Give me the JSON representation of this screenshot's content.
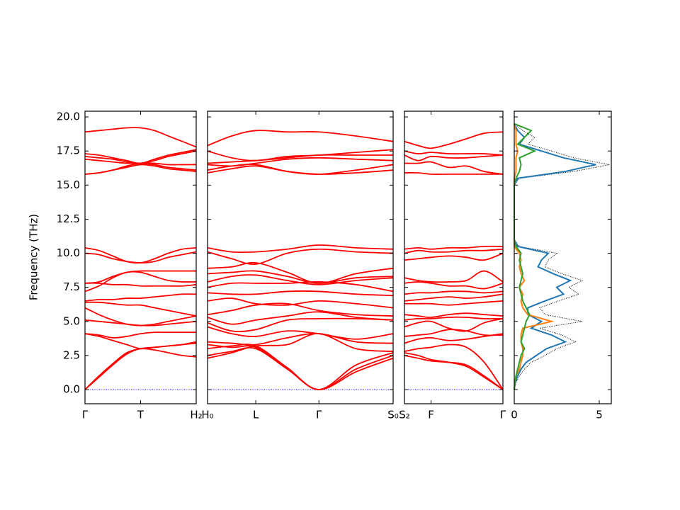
{
  "chart_data": {
    "type": "band_structure",
    "ylabel": "Frequency (THz)",
    "ylim": [
      -1.04,
      20.42
    ],
    "yticks": [
      {
        "value": 0,
        "label": "0.0"
      },
      2.5,
      {
        "value": 5,
        "label": "5.0"
      },
      7.5,
      {
        "value": 10,
        "label": "10.0"
      },
      12.5,
      {
        "value": 15,
        "label": "15.0"
      },
      17.5,
      {
        "value": 20,
        "label": "20.0"
      }
    ],
    "band_color": "red",
    "zero_line": {
      "value": 0,
      "color": "blue"
    },
    "panels": [
      {
        "xlim": [
          0,
          1
        ],
        "xticks": [
          {
            "value": 0,
            "label": "Γ"
          },
          {
            "value": 0.5,
            "label": "T"
          },
          {
            "value": 1,
            "label": "H₂"
          }
        ],
        "x": [
          0,
          0.125,
          0.25,
          0.375,
          0.5,
          0.625,
          0.75,
          0.875,
          1.0
        ],
        "bands": [
          [
            18.9,
            19.0,
            19.1,
            19.2,
            19.2,
            19.0,
            18.6,
            18.2,
            17.8
          ],
          [
            17.3,
            17.2,
            17.0,
            16.8,
            16.6,
            16.9,
            17.2,
            17.4,
            17.6
          ],
          [
            17.1,
            17.0,
            16.9,
            16.7,
            16.6,
            16.8,
            17.1,
            17.3,
            17.5
          ],
          [
            15.8,
            15.9,
            16.1,
            16.4,
            16.6,
            16.6,
            16.5,
            16.5,
            16.5
          ],
          [
            15.8,
            15.9,
            16.1,
            16.3,
            16.5,
            16.4,
            16.2,
            16.1,
            16.0
          ],
          [
            16.9,
            16.8,
            16.7,
            16.6,
            16.6,
            16.5,
            16.3,
            16.2,
            16.1
          ],
          [
            10.4,
            10.2,
            9.8,
            9.4,
            9.3,
            9.6,
            10.0,
            10.3,
            10.4
          ],
          [
            10.0,
            9.9,
            9.6,
            9.4,
            9.3,
            9.4,
            9.7,
            9.9,
            10.1
          ],
          [
            7.8,
            7.9,
            8.3,
            8.6,
            8.7,
            8.7,
            8.7,
            8.7,
            8.7
          ],
          [
            7.2,
            7.6,
            8.2,
            8.6,
            8.6,
            8.3,
            8.0,
            7.9,
            7.9
          ],
          [
            7.8,
            7.8,
            7.7,
            7.7,
            7.6,
            7.6,
            7.6,
            7.6,
            7.7
          ],
          [
            6.5,
            6.6,
            6.6,
            6.7,
            6.7,
            6.8,
            6.9,
            7.0,
            7.0
          ],
          [
            6.4,
            6.4,
            6.3,
            6.2,
            6.2,
            6.0,
            5.8,
            5.6,
            5.4
          ],
          [
            6.0,
            5.5,
            5.1,
            4.8,
            4.7,
            4.8,
            5.0,
            5.2,
            5.4
          ],
          [
            5.1,
            5.0,
            4.9,
            4.8,
            4.7,
            4.7,
            4.8,
            4.9,
            5.0
          ],
          [
            4.1,
            4.0,
            3.8,
            3.9,
            4.1,
            4.2,
            4.2,
            4.2,
            4.2
          ],
          [
            4.1,
            3.9,
            3.6,
            3.3,
            3.0,
            3.1,
            3.2,
            3.3,
            3.4
          ],
          [
            0,
            0.9,
            1.8,
            2.6,
            3.0,
            2.9,
            2.7,
            2.5,
            2.4
          ],
          [
            0,
            1.0,
            1.9,
            2.7,
            3.0,
            3.1,
            3.2,
            3.3,
            3.5
          ]
        ]
      },
      {
        "xlim": [
          0,
          1
        ],
        "xticks": [
          {
            "value": 0,
            "label": "H₀"
          },
          {
            "value": 0.26,
            "label": "L"
          },
          {
            "value": 0.6,
            "label": "Γ"
          },
          {
            "value": 1,
            "label": "S₀"
          }
        ],
        "x": [
          0,
          0.13,
          0.26,
          0.43,
          0.6,
          0.8,
          1.0
        ],
        "bands": [
          [
            17.9,
            18.6,
            19.0,
            18.9,
            18.9,
            18.6,
            18.2
          ],
          [
            17.5,
            17.0,
            16.8,
            17.1,
            17.2,
            17.4,
            17.6
          ],
          [
            16.6,
            16.7,
            16.8,
            17.0,
            17.2,
            17.2,
            17.2
          ],
          [
            16.5,
            16.4,
            16.6,
            16.9,
            17.0,
            16.9,
            16.8
          ],
          [
            16.1,
            16.4,
            16.5,
            16.0,
            15.8,
            16.1,
            16.5
          ],
          [
            15.9,
            16.2,
            16.4,
            16.0,
            15.8,
            15.9,
            16.1
          ],
          [
            10.4,
            10.1,
            10.1,
            10.3,
            10.6,
            10.4,
            10.3
          ],
          [
            10.1,
            9.6,
            9.2,
            10.0,
            10.3,
            10.1,
            10.0
          ],
          [
            8.9,
            9.0,
            9.3,
            8.6,
            7.8,
            8.5,
            8.9
          ],
          [
            8.5,
            8.6,
            8.7,
            8.3,
            7.8,
            8.2,
            8.3
          ],
          [
            7.9,
            8.3,
            8.4,
            8.0,
            7.7,
            8.0,
            8.2
          ],
          [
            7.5,
            7.8,
            7.8,
            7.8,
            7.9,
            7.7,
            7.2
          ],
          [
            7.1,
            7.0,
            7.0,
            7.2,
            7.2,
            7.0,
            6.9
          ],
          [
            6.5,
            6.7,
            6.3,
            6.2,
            6.5,
            6.3,
            6.0
          ],
          [
            5.5,
            5.8,
            6.2,
            6.3,
            5.8,
            5.5,
            5.4
          ],
          [
            5.3,
            4.8,
            5.1,
            5.4,
            5.7,
            5.3,
            5.1
          ],
          [
            4.9,
            4.3,
            4.4,
            5.1,
            5.2,
            5.2,
            5.1
          ],
          [
            4.6,
            4.1,
            3.9,
            4.3,
            4.1,
            3.7,
            4.1
          ],
          [
            3.5,
            3.4,
            3.3,
            3.8,
            4.1,
            3.5,
            3.4
          ],
          [
            2.3,
            2.7,
            3.2,
            3.3,
            4.1,
            3.0,
            2.8
          ],
          [
            3.3,
            3.1,
            3.1,
            1.6,
            0,
            1.8,
            2.7
          ],
          [
            3.0,
            3.2,
            3.2,
            1.6,
            0,
            1.5,
            2.5
          ],
          [
            2.5,
            2.8,
            3.0,
            1.5,
            0,
            1.3,
            2.3
          ]
        ]
      },
      {
        "xlim": [
          0,
          1
        ],
        "xticks": [
          {
            "value": 0,
            "label": "S₂"
          },
          {
            "value": 0.27,
            "label": "F"
          },
          {
            "value": 1,
            "label": "Γ"
          }
        ],
        "x": [
          0,
          0.14,
          0.27,
          0.45,
          0.63,
          0.81,
          1.0
        ],
        "bands": [
          [
            18.2,
            17.9,
            17.7,
            18.0,
            18.4,
            18.8,
            18.9
          ],
          [
            17.5,
            17.3,
            17.4,
            17.3,
            17.3,
            17.3,
            17.2
          ],
          [
            17.2,
            16.8,
            17.1,
            17.0,
            17.0,
            17.1,
            17.2
          ],
          [
            16.6,
            16.6,
            16.7,
            16.3,
            16.4,
            16.0,
            15.8
          ],
          [
            15.9,
            15.9,
            15.8,
            15.8,
            15.8,
            15.8,
            15.8
          ],
          [
            10.3,
            10.4,
            10.3,
            10.4,
            10.4,
            10.5,
            10.5
          ],
          [
            10.0,
            10.2,
            10.1,
            10.1,
            10.2,
            10.2,
            10.3
          ],
          [
            9.5,
            9.6,
            9.7,
            9.8,
            9.7,
            9.5,
            10.0
          ],
          [
            8.2,
            8.0,
            7.9,
            7.9,
            8.0,
            8.7,
            7.9
          ],
          [
            7.8,
            7.9,
            7.8,
            7.6,
            7.6,
            7.4,
            7.8
          ],
          [
            7.0,
            7.1,
            7.1,
            7.2,
            7.2,
            7.1,
            7.2
          ],
          [
            6.5,
            6.6,
            6.7,
            6.8,
            6.7,
            6.8,
            7.0
          ],
          [
            6.3,
            6.3,
            6.3,
            6.2,
            6.3,
            6.4,
            6.5
          ],
          [
            5.5,
            5.4,
            5.3,
            5.5,
            5.6,
            5.5,
            5.4
          ],
          [
            5.1,
            5.2,
            5.2,
            5.3,
            5.3,
            5.2,
            5.2
          ],
          [
            4.6,
            4.9,
            5.0,
            4.5,
            4.3,
            4.9,
            5.2
          ],
          [
            3.9,
            4.0,
            4.1,
            4.4,
            4.3,
            4.0,
            4.0
          ],
          [
            3.4,
            3.7,
            3.8,
            3.6,
            3.7,
            3.9,
            4.1
          ],
          [
            2.8,
            3.0,
            3.1,
            3.3,
            3.1,
            2.0,
            0
          ],
          [
            2.5,
            2.3,
            2.1,
            2.0,
            1.8,
            1.0,
            0
          ],
          [
            2.7,
            2.5,
            2.2,
            2.0,
            1.7,
            0.9,
            0
          ]
        ]
      }
    ],
    "dos": {
      "xlim": [
        0,
        5.71
      ],
      "xticks": [
        0,
        5
      ],
      "y": [
        0,
        0.5,
        1,
        1.5,
        2,
        2.5,
        3,
        3.5,
        4,
        4.5,
        5,
        5.5,
        6,
        6.5,
        7,
        7.5,
        8,
        8.5,
        9,
        9.5,
        10,
        10.5,
        11,
        11.5,
        12,
        12.5,
        13,
        13.5,
        14,
        14.5,
        15,
        15.5,
        16,
        16.5,
        17,
        17.5,
        18,
        18.5,
        19,
        19.5
      ],
      "series": [
        {
          "color": "#000000",
          "style": "dotted",
          "values": [
            0,
            0.1,
            0.3,
            0.6,
            1.0,
            1.8,
            2.5,
            3.6,
            2.8,
            1.5,
            4.0,
            1.8,
            1.5,
            2.6,
            3.8,
            3.2,
            4.0,
            2.8,
            1.8,
            2.0,
            2.5,
            0.3,
            0,
            0,
            0,
            0,
            0,
            0,
            0,
            0,
            0,
            0.3,
            3.5,
            5.6,
            3.5,
            2.2,
            0.8,
            1.2,
            0.5,
            0
          ]
        },
        {
          "color": "#1f77b4",
          "style": "solid",
          "values": [
            0,
            0.05,
            0.2,
            0.4,
            0.7,
            1.3,
            1.9,
            3.0,
            2.2,
            1.0,
            1.6,
            0.8,
            0.8,
            1.8,
            2.9,
            2.5,
            3.3,
            2.3,
            1.4,
            1.6,
            2.0,
            0.2,
            0,
            0,
            0,
            0,
            0,
            0,
            0,
            0,
            0,
            0.2,
            3.0,
            4.8,
            2.9,
            1.6,
            0.3,
            0.6,
            0.2,
            0
          ]
        },
        {
          "color": "#ff7f0e",
          "style": "solid",
          "values": [
            0,
            0.05,
            0.1,
            0.3,
            0.4,
            0.5,
            0.5,
            0.4,
            0.4,
            0.5,
            2.2,
            0.8,
            0.5,
            0.4,
            0.5,
            0.3,
            0.6,
            0.4,
            0.3,
            0.4,
            0.3,
            0,
            0,
            0,
            0,
            0,
            0,
            0,
            0,
            0,
            0,
            0,
            0.1,
            0.1,
            0.1,
            0.2,
            0.1,
            0.1,
            0.1,
            0
          ]
        },
        {
          "color": "#2ca02c",
          "style": "solid",
          "values": [
            0,
            0.05,
            0.1,
            0.2,
            0.3,
            0.4,
            0.6,
            0.4,
            0.5,
            0.6,
            0.7,
            0.9,
            0.7,
            0.5,
            0.4,
            0.3,
            0.4,
            0.5,
            0.4,
            0.3,
            0.4,
            0.1,
            0,
            0,
            0,
            0,
            0,
            0,
            0,
            0,
            0,
            0.1,
            0.3,
            0.4,
            0.3,
            1.2,
            0.2,
            0.6,
            1.0,
            0
          ]
        }
      ]
    }
  }
}
